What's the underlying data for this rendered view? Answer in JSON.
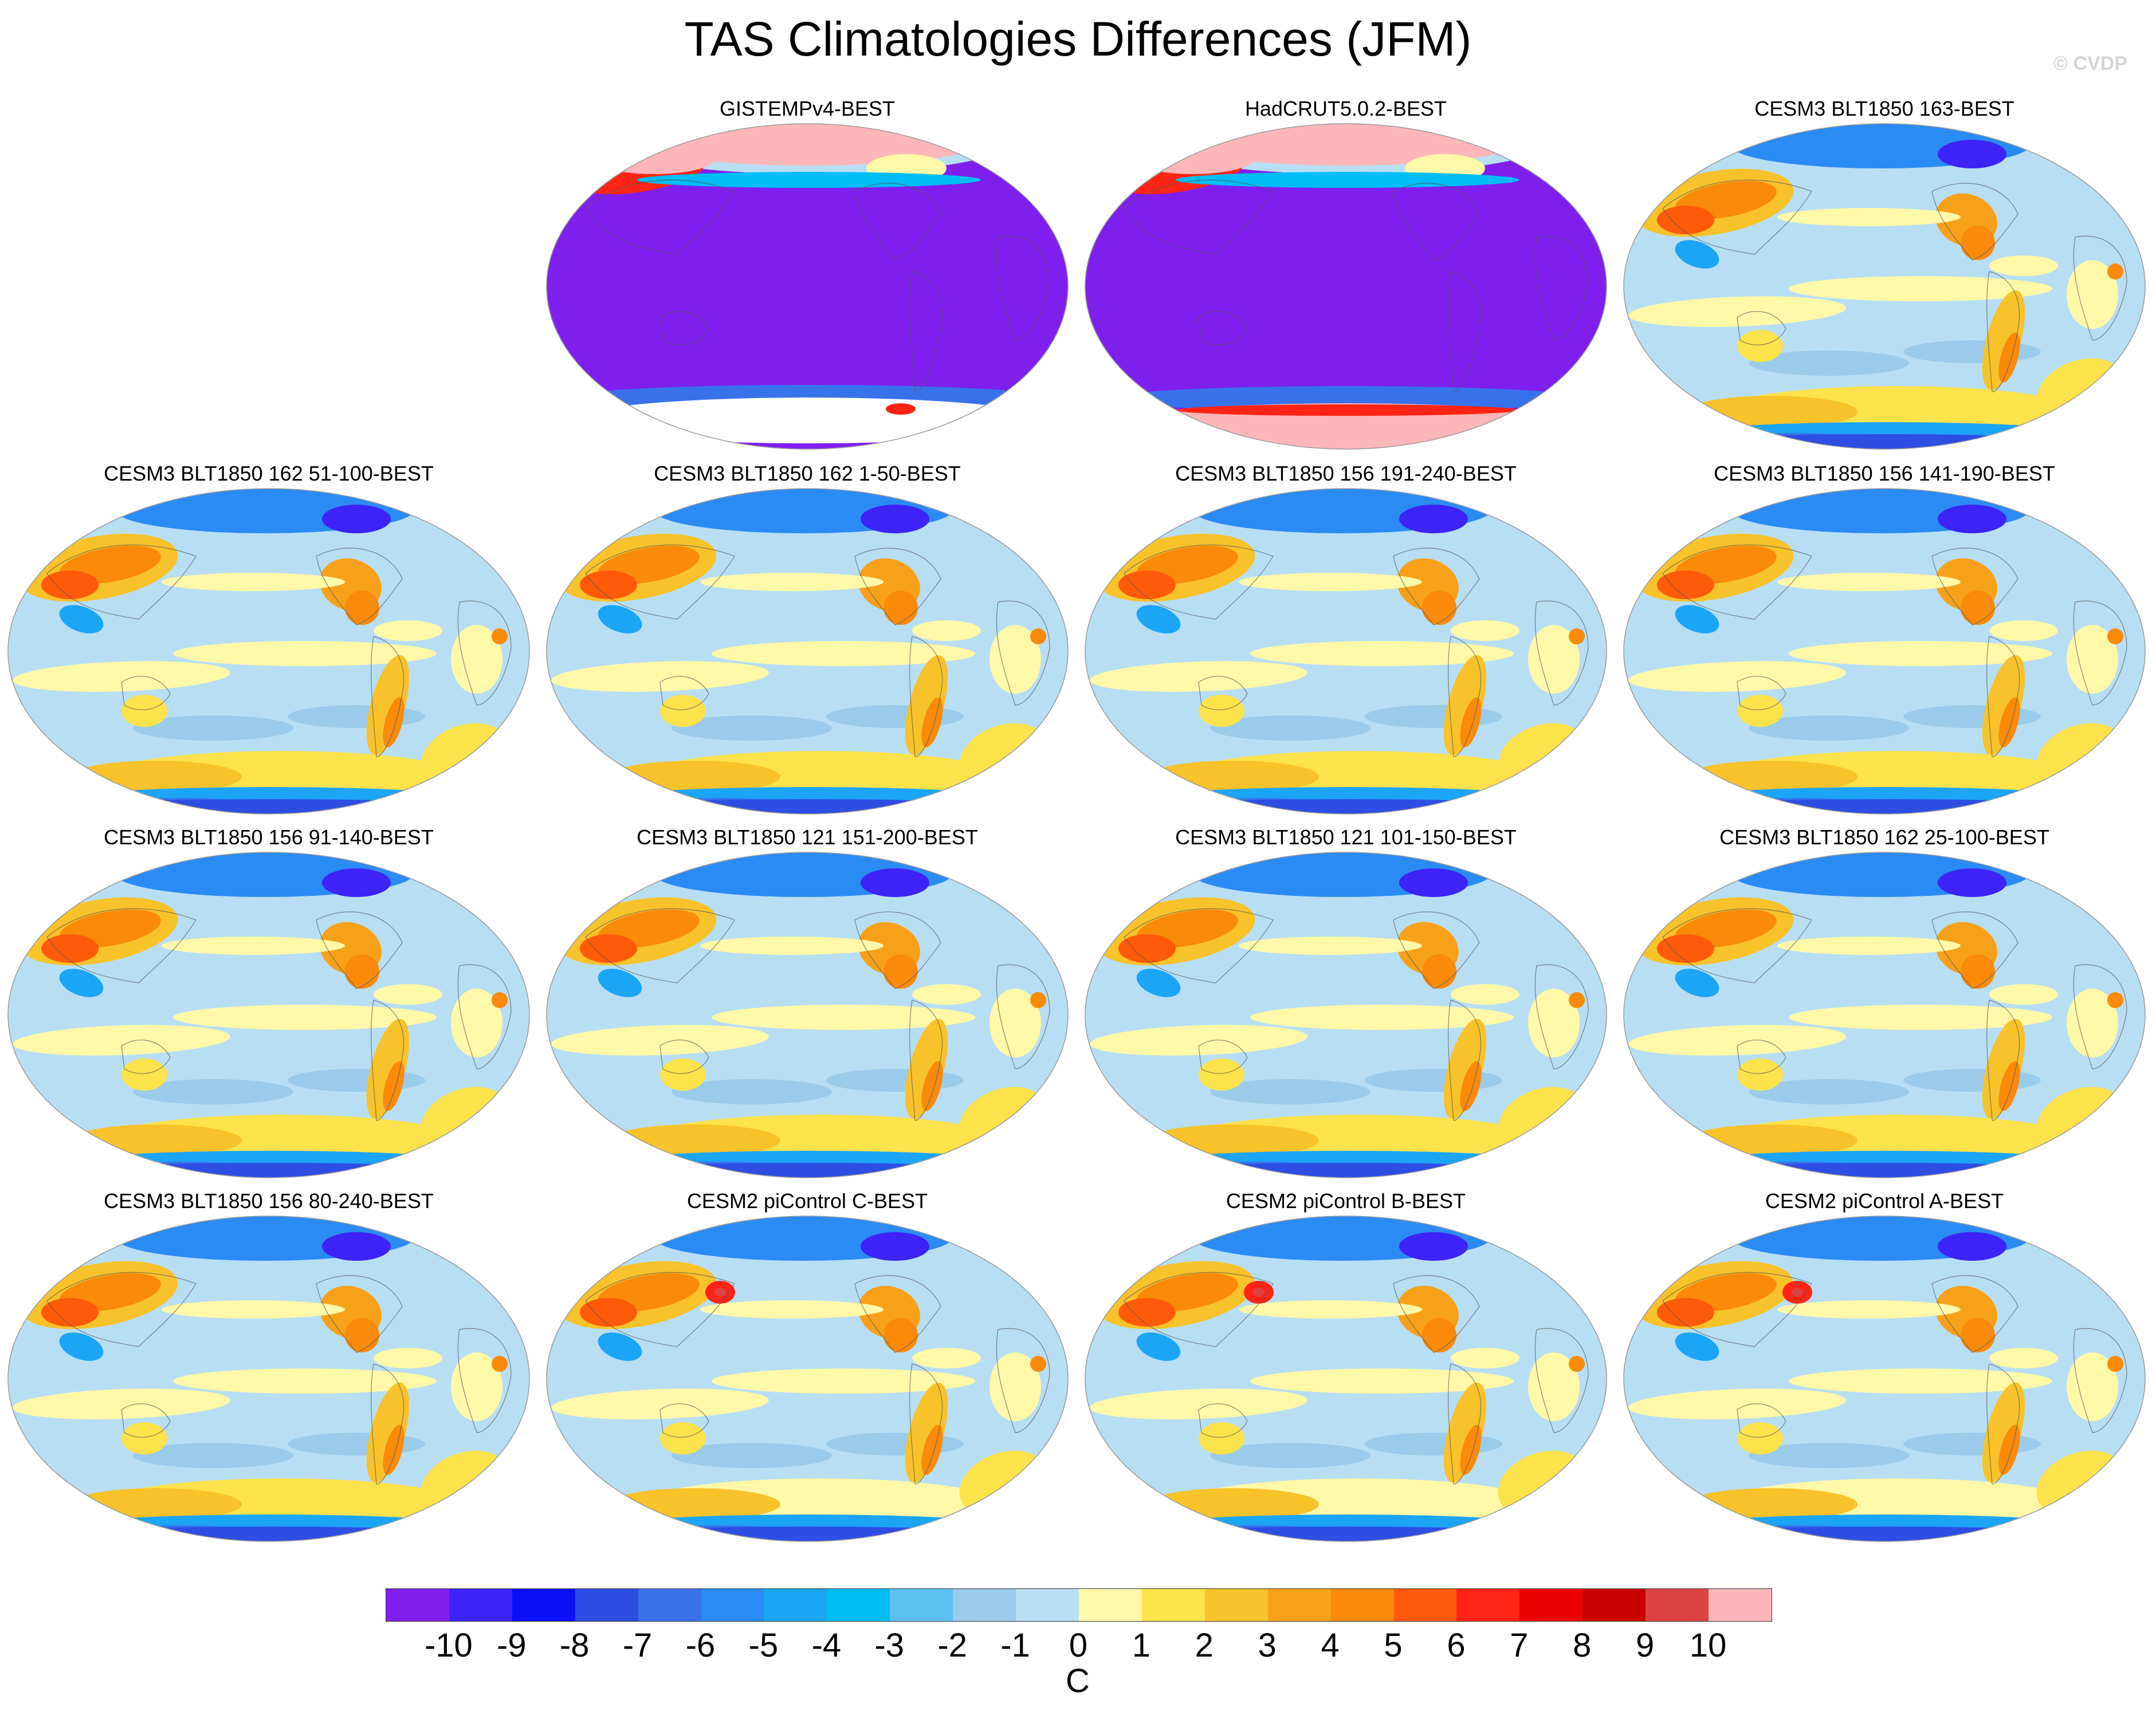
{
  "title": "TAS Climatologies Differences (JFM)",
  "watermark": "© CVDP",
  "panels": [
    {
      "label": "GISTEMPv4-BEST",
      "pattern": "obs_gistemp"
    },
    {
      "label": "HadCRUT5.0.2-BEST",
      "pattern": "obs_hadcrut"
    },
    {
      "label": "CESM3 BLT1850 163-BEST",
      "pattern": "model"
    },
    {
      "label": "CESM3 BLT1850 162 51-100-BEST",
      "pattern": "model"
    },
    {
      "label": "CESM3 BLT1850 162 1-50-BEST",
      "pattern": "model"
    },
    {
      "label": "CESM3 BLT1850 156 191-240-BEST",
      "pattern": "model"
    },
    {
      "label": "CESM3 BLT1850 156 141-190-BEST",
      "pattern": "model"
    },
    {
      "label": "CESM3 BLT1850 156 91-140-BEST",
      "pattern": "model"
    },
    {
      "label": "CESM3 BLT1850 121 151-200-BEST",
      "pattern": "model"
    },
    {
      "label": "CESM3 BLT1850 121 101-150-BEST",
      "pattern": "model"
    },
    {
      "label": "CESM3 BLT1850 162 25-100-BEST",
      "pattern": "model"
    },
    {
      "label": "CESM3 BLT1850 156 80-240-BEST",
      "pattern": "model"
    },
    {
      "label": "CESM2 piControl C-BEST",
      "pattern": "model2"
    },
    {
      "label": "CESM2 piControl B-BEST",
      "pattern": "model2"
    },
    {
      "label": "CESM2 piControl A-BEST",
      "pattern": "model2"
    }
  ],
  "colorbar": {
    "units": "C",
    "labels": [
      "-10",
      "-9",
      "-8",
      "-7",
      "-6",
      "-5",
      "-4",
      "-3",
      "-2",
      "-1",
      "0",
      "1",
      "2",
      "3",
      "4",
      "5",
      "6",
      "7",
      "8",
      "9",
      "10"
    ],
    "colors": [
      "#7f1fee",
      "#3d23f5",
      "#0a10f5",
      "#2e4de3",
      "#3872eb",
      "#2b8bf5",
      "#1ca5f5",
      "#00bef5",
      "#5cc1f2",
      "#9acbea",
      "#b8def4",
      "#fff8a8",
      "#fce24b",
      "#f8c22a",
      "#f7a11a",
      "#f98a0a",
      "#ff5a0a",
      "#ff2415",
      "#ec0000",
      "#c80000",
      "#dc4242",
      "#fdb6ba"
    ]
  }
}
